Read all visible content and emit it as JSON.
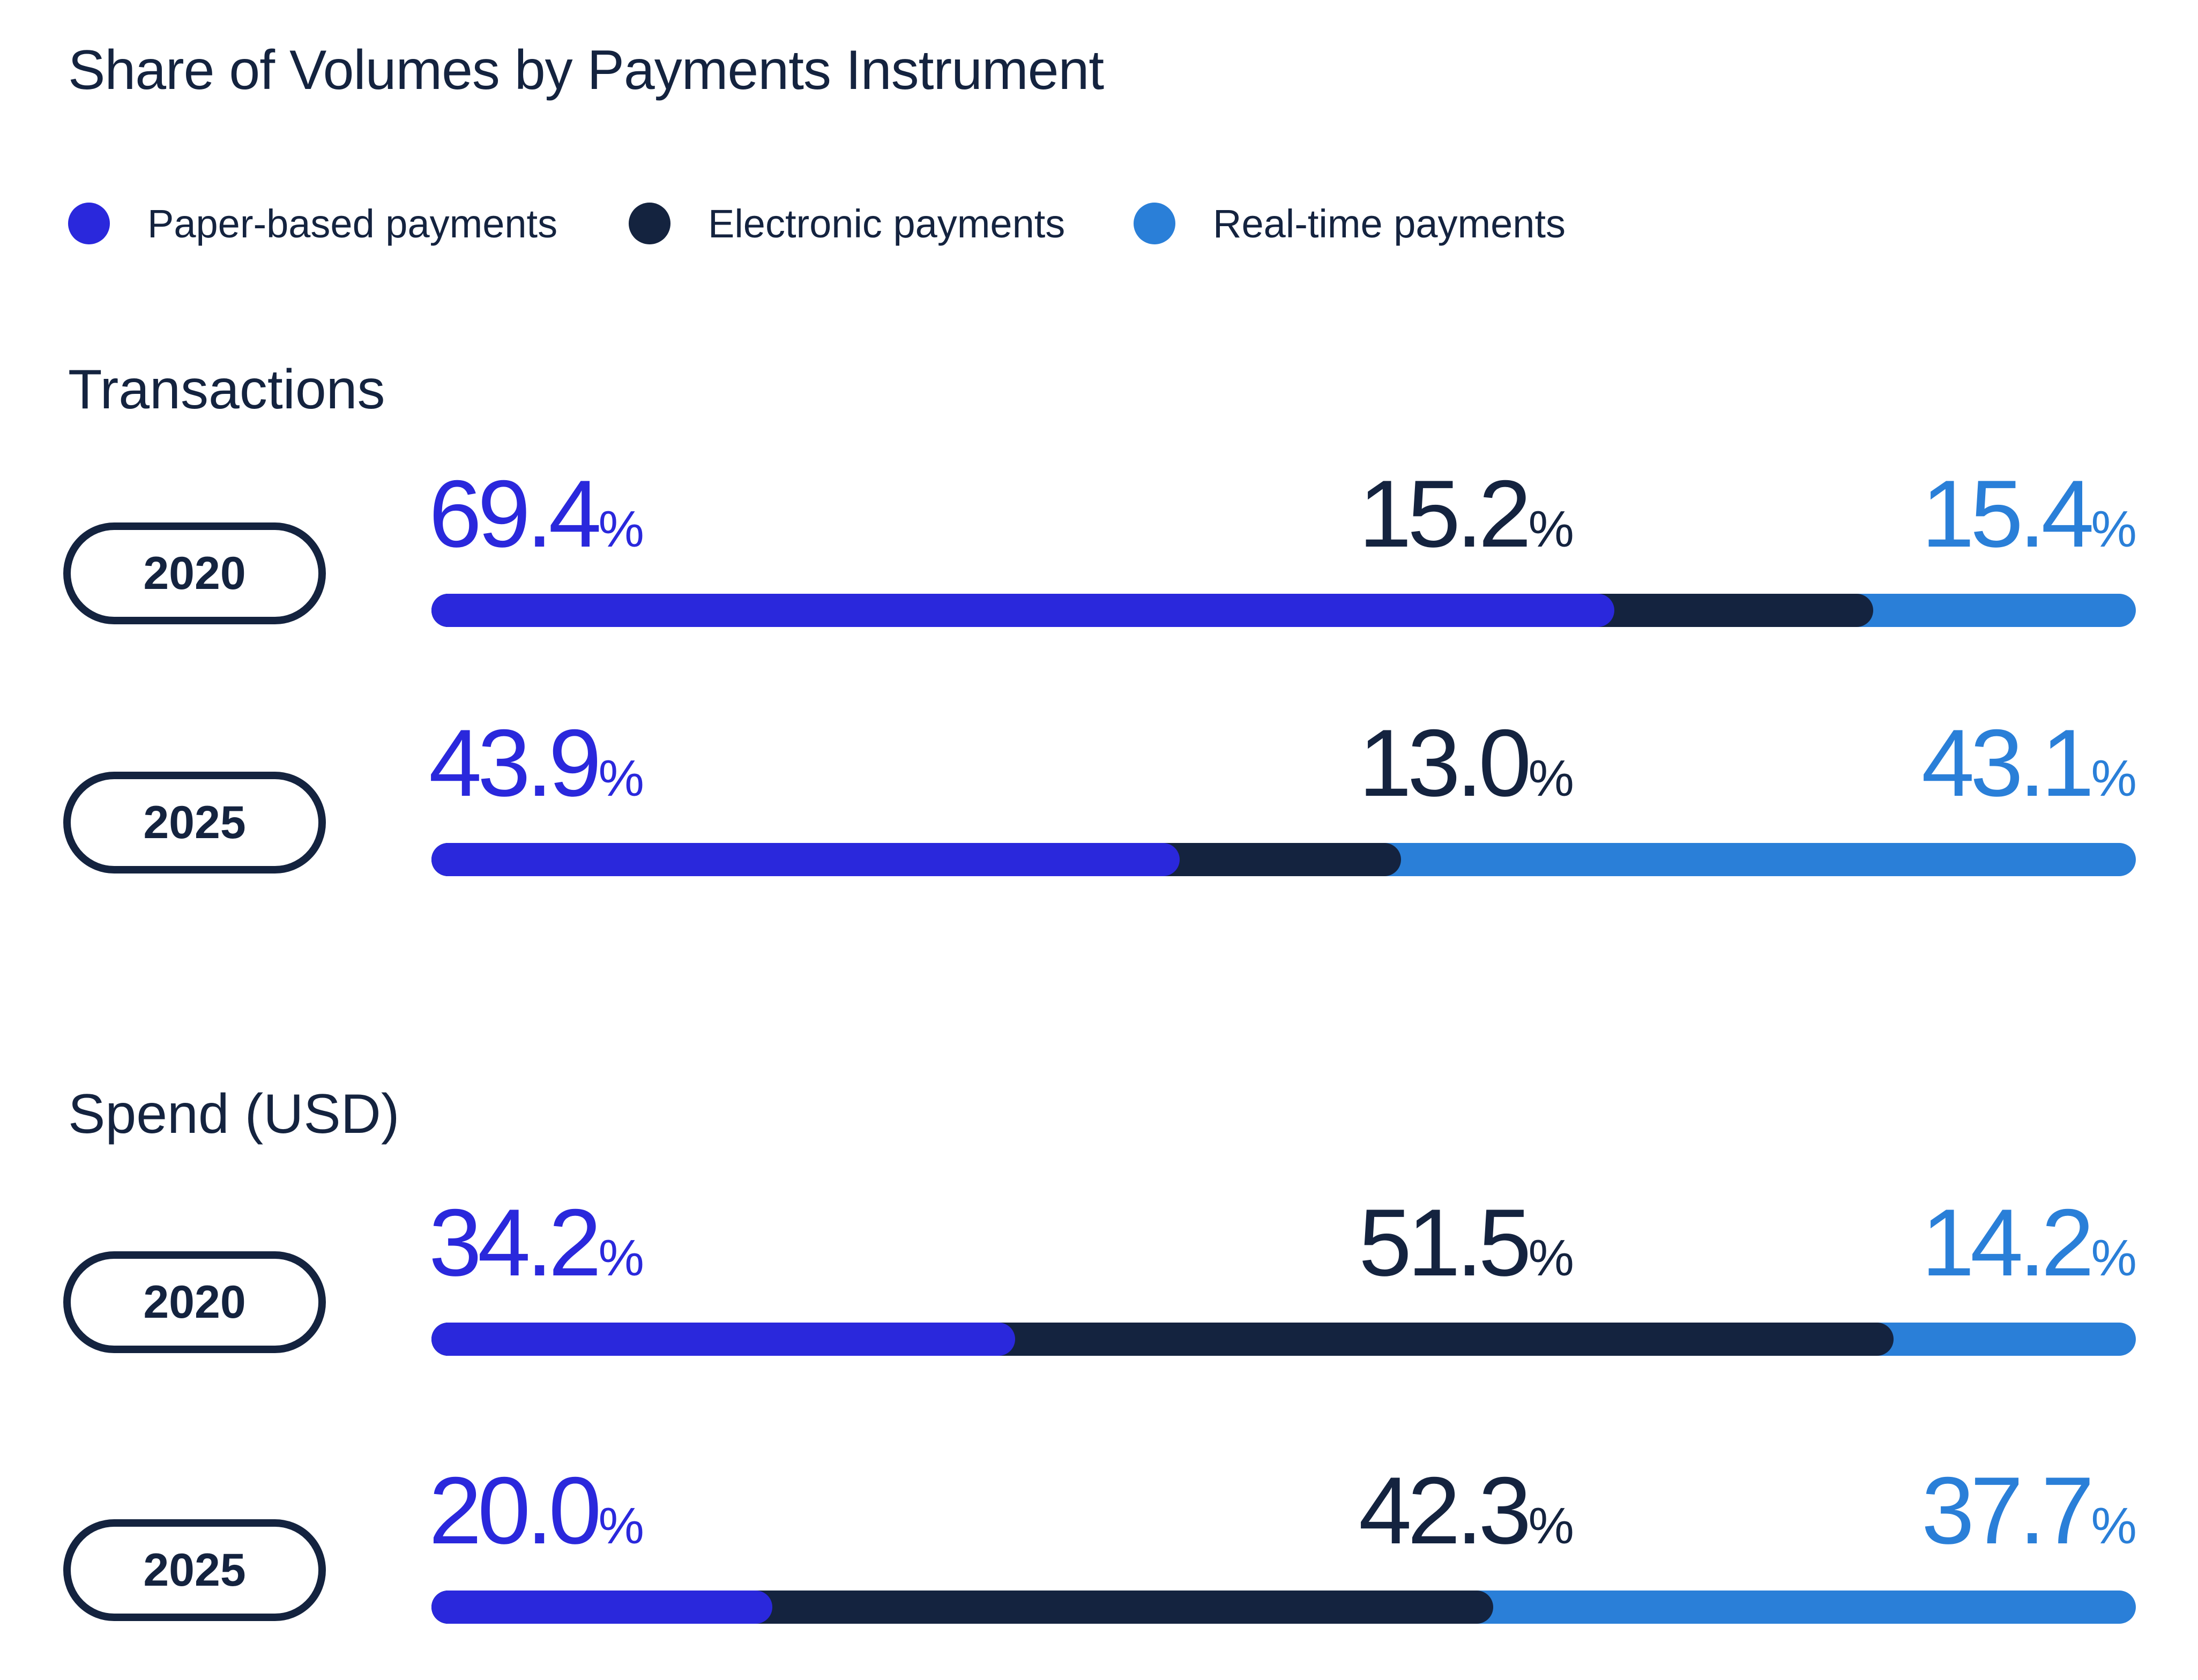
{
  "chart_data": {
    "type": "bar",
    "orientation": "horizontal-stacked-100",
    "title": "Share of Volumes by Payments Instrument",
    "unit": "%",
    "legend": [
      {
        "key": "paper",
        "label": "Paper-based payments",
        "color": "#2a28dc"
      },
      {
        "key": "electronic",
        "label": "Electronic payments",
        "color": "#14233f"
      },
      {
        "key": "realtime",
        "label": "Real-time payments",
        "color": "#2a7fd8"
      }
    ],
    "groups": [
      {
        "title": "Transactions",
        "rows": [
          {
            "year": "2020",
            "values": {
              "paper": 69.4,
              "electronic": 15.2,
              "realtime": 15.4
            },
            "labels": {
              "paper": "69.4",
              "electronic": "15.2",
              "realtime": "15.4"
            }
          },
          {
            "year": "2025",
            "values": {
              "paper": 43.9,
              "electronic": 13.0,
              "realtime": 43.1
            },
            "labels": {
              "paper": "43.9",
              "electronic": "13.0",
              "realtime": "43.1"
            }
          }
        ]
      },
      {
        "title": "Spend (USD)",
        "rows": [
          {
            "year": "2020",
            "values": {
              "paper": 34.2,
              "electronic": 51.5,
              "realtime": 14.2
            },
            "labels": {
              "paper": "34.2",
              "electronic": "51.5",
              "realtime": "14.2"
            }
          },
          {
            "year": "2025",
            "values": {
              "paper": 20.0,
              "electronic": 42.3,
              "realtime": 37.7
            },
            "labels": {
              "paper": "20.0",
              "electronic": "42.3",
              "realtime": "37.7"
            }
          }
        ]
      }
    ]
  }
}
